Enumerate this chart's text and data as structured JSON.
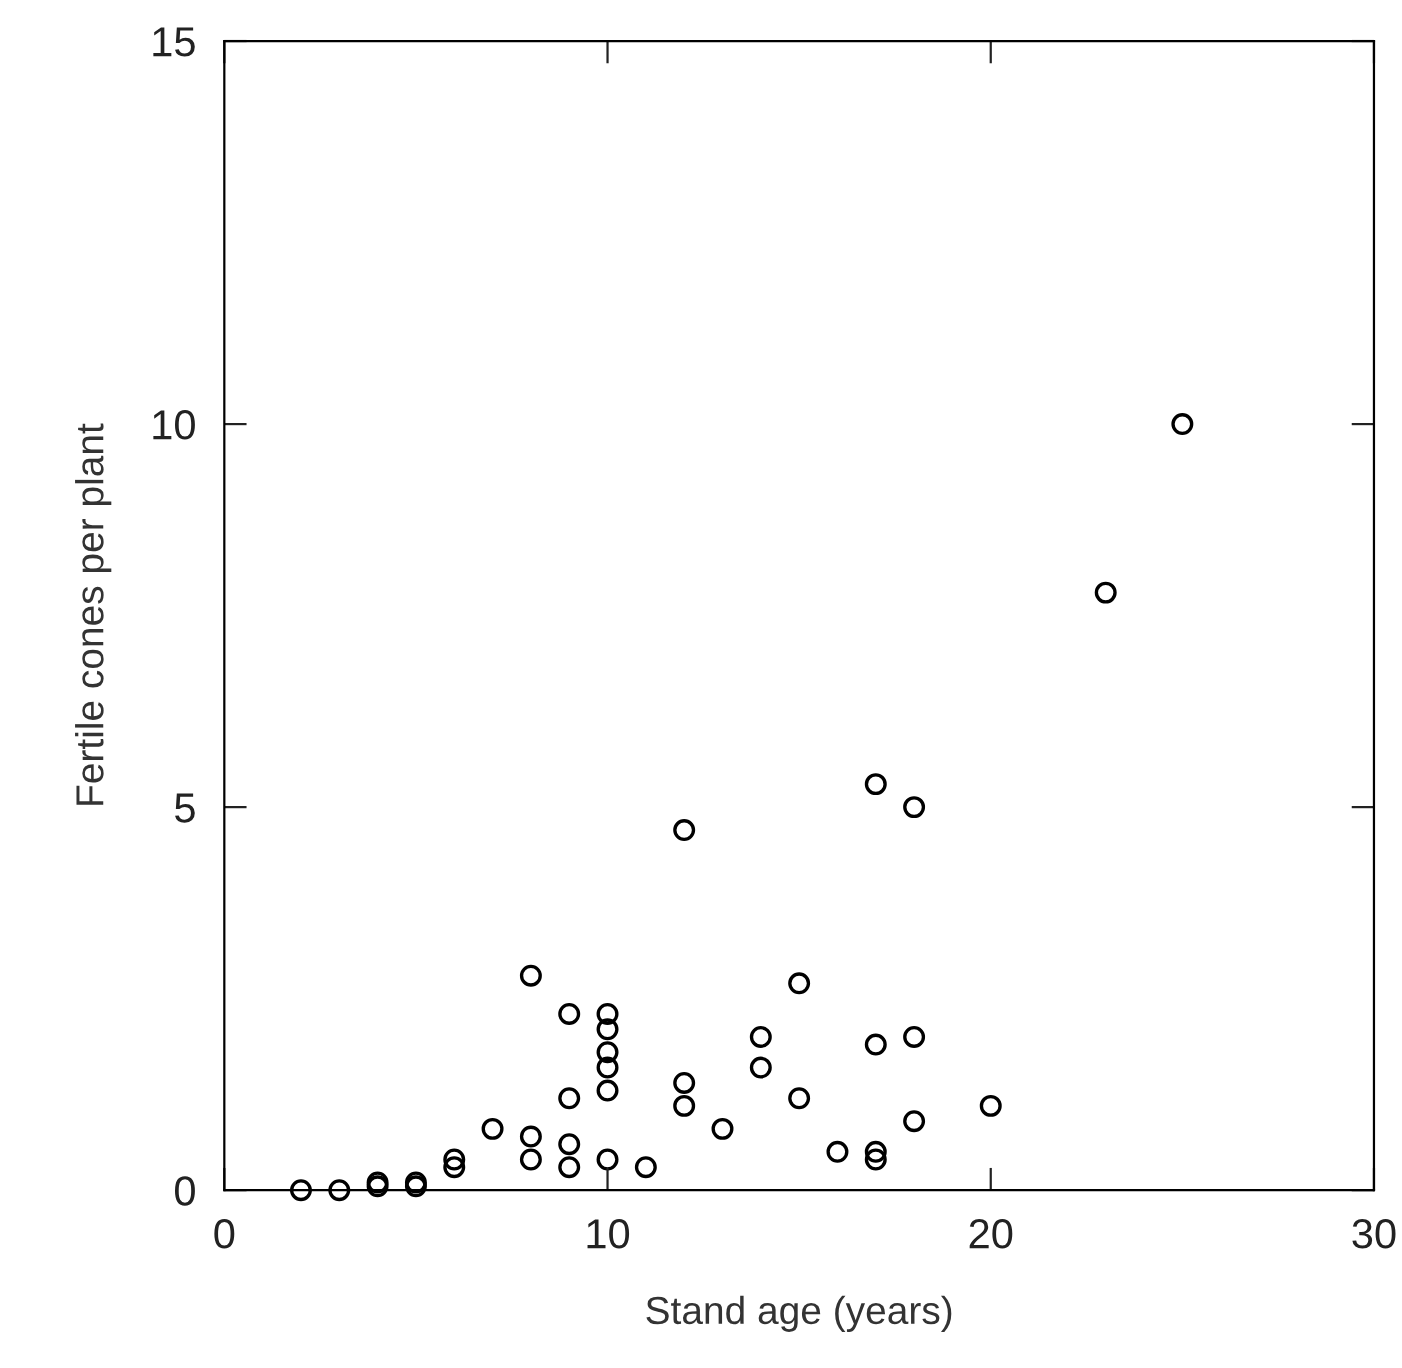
{
  "chart_data": {
    "type": "scatter",
    "xlabel": "Stand age (years)",
    "ylabel": "Fertile cones per plant",
    "xlim": [
      0,
      30
    ],
    "ylim": [
      0,
      15
    ],
    "xticks": [
      0,
      10,
      20,
      30
    ],
    "yticks": [
      0,
      5,
      10,
      15
    ],
    "grid": false,
    "marker": "circle",
    "series": [
      {
        "color": "#000000",
        "x": [
          2,
          3,
          4,
          4,
          5,
          5,
          6,
          6,
          7,
          8,
          8,
          8,
          9,
          9,
          9,
          9,
          10,
          10,
          10,
          10,
          10,
          10,
          11,
          12,
          12,
          12,
          13,
          14,
          14,
          15,
          15,
          16,
          17,
          17,
          17,
          17,
          18,
          18,
          18,
          20,
          23,
          25
        ],
        "values": [
          0,
          0,
          0.05,
          0.1,
          0.05,
          0.1,
          0.3,
          0.4,
          0.8,
          2.8,
          0.7,
          0.4,
          2.3,
          1.2,
          0.6,
          0.3,
          2.3,
          2.1,
          1.8,
          1.6,
          1.3,
          0.4,
          0.3,
          4.7,
          1.4,
          1.1,
          0.8,
          2.0,
          1.6,
          2.7,
          1.2,
          0.5,
          5.3,
          1.9,
          0.5,
          0.4,
          5.0,
          2.0,
          0.9,
          1.1,
          7.8,
          10.0
        ]
      }
    ]
  }
}
